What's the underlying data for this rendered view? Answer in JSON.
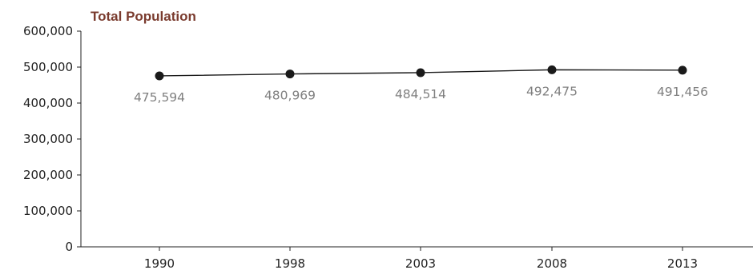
{
  "chart_data": {
    "type": "line",
    "title": "Total Population",
    "xlabel": "",
    "ylabel": "",
    "categories": [
      "1990",
      "1998",
      "2003",
      "2008",
      "2013"
    ],
    "series": [
      {
        "values": [
          475594,
          480969,
          484514,
          492475,
          491456
        ]
      }
    ],
    "data_labels": [
      "475,594",
      "480,969",
      "484,514",
      "492,475",
      "491,456"
    ],
    "y_ticks": [
      "0",
      "100,000",
      "200,000",
      "300,000",
      "400,000",
      "500,000",
      "600,000"
    ],
    "ylim": [
      0,
      600000
    ],
    "grid": false,
    "legend": "none",
    "colors": {
      "line": "#1a1a1a",
      "marker": "#1a1a1a",
      "title": "#7a3b2e",
      "labels": "#7f7f7f"
    }
  }
}
